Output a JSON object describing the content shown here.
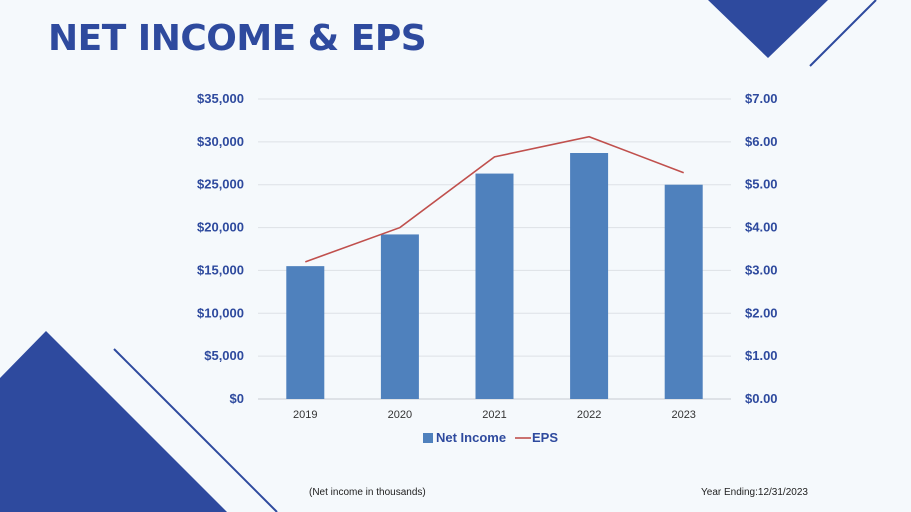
{
  "slide": {
    "title": "NET INCOME & EPS",
    "note_left": "(Net income in thousands)",
    "note_right": "Year Ending:12/31/2023"
  },
  "colors": {
    "accent": "#2e4a9e",
    "bar": "#4f81bd",
    "line": "#c0504d",
    "background": "#f5f9fc"
  },
  "chart_data": {
    "type": "bar",
    "categories": [
      "2019",
      "2020",
      "2021",
      "2022",
      "2023"
    ],
    "series": [
      {
        "name": "Net Income",
        "type": "bar",
        "axis": "left",
        "values": [
          15500,
          19200,
          26300,
          28700,
          25000
        ]
      },
      {
        "name": "EPS",
        "type": "line",
        "axis": "right",
        "values": [
          3.2,
          4.0,
          5.65,
          6.12,
          5.28
        ]
      }
    ],
    "y_left": {
      "ylim": [
        0,
        35000
      ],
      "ticks": [
        0,
        5000,
        10000,
        15000,
        20000,
        25000,
        30000,
        35000
      ],
      "tick_labels": [
        "$0",
        "$5,000",
        "$10,000",
        "$15,000",
        "$20,000",
        "$25,000",
        "$30,000",
        "$35,000"
      ]
    },
    "y_right": {
      "ylim": [
        0,
        7
      ],
      "ticks": [
        0,
        1,
        2,
        3,
        4,
        5,
        6,
        7
      ],
      "tick_labels": [
        "$0.00",
        "$1.00",
        "$2.00",
        "$3.00",
        "$4.00",
        "$5.00",
        "$6.00",
        "$7.00"
      ]
    },
    "legend": {
      "entries": [
        "Net Income",
        "EPS"
      ],
      "position": "bottom"
    },
    "grid": true
  }
}
